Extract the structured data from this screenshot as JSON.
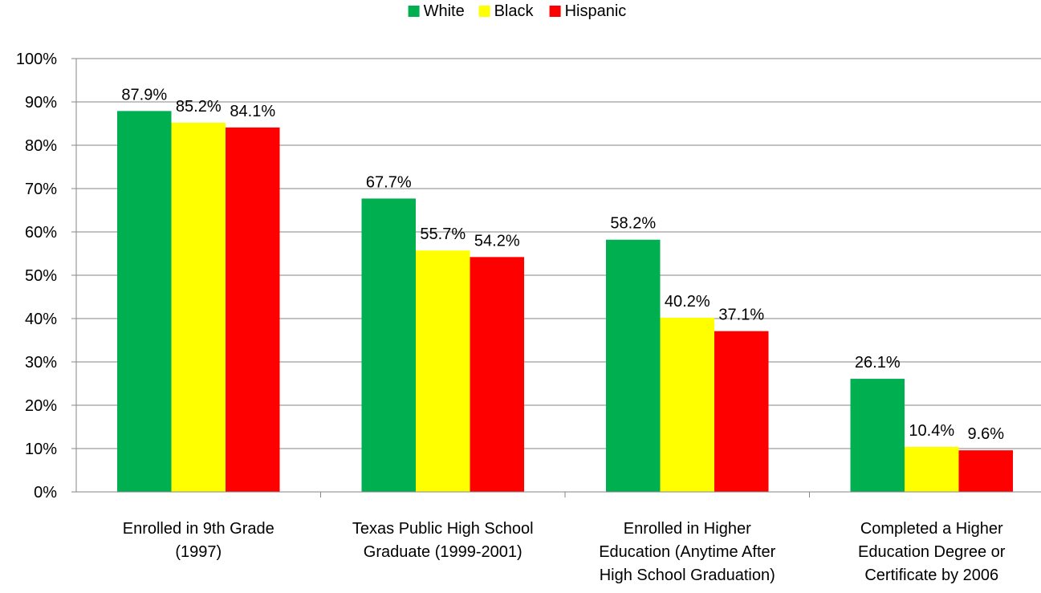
{
  "chart_data": {
    "type": "bar",
    "title": "",
    "xlabel": "",
    "ylabel": "",
    "ylim": [
      0,
      100
    ],
    "y_ticks": [
      0,
      10,
      20,
      30,
      40,
      50,
      60,
      70,
      80,
      90,
      100
    ],
    "y_tick_format": "percent",
    "grid": true,
    "legend_position": "top-center",
    "categories": [
      [
        "Enrolled in 9th Grade",
        "(1997)"
      ],
      [
        "Texas Public High School",
        "Graduate (1999-2001)"
      ],
      [
        "Enrolled in Higher",
        "Education (Anytime After",
        "High School Graduation)"
      ],
      [
        "Completed a Higher",
        "Education Degree or",
        "Certificate by 2006"
      ]
    ],
    "series": [
      {
        "name": "White",
        "color": "#00B050",
        "values": [
          87.9,
          67.7,
          58.2,
          26.1
        ]
      },
      {
        "name": "Black",
        "color": "#FFFF00",
        "values": [
          85.2,
          55.7,
          40.2,
          10.4
        ]
      },
      {
        "name": "Hispanic",
        "color": "#FF0000",
        "values": [
          84.1,
          54.2,
          37.1,
          9.6
        ]
      }
    ]
  }
}
